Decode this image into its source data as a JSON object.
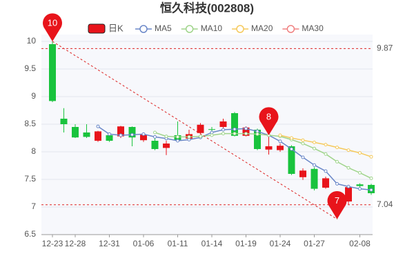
{
  "chart_data": {
    "type": "candlestick",
    "title": "恒久科技(002808)",
    "categories": [
      "12-23",
      null,
      "12-28",
      null,
      null,
      "12-31",
      null,
      null,
      "01-06",
      null,
      null,
      "01-11",
      null,
      null,
      "01-14",
      null,
      null,
      "01-19",
      null,
      null,
      "01-24",
      null,
      null,
      "01-27",
      null,
      null,
      null,
      "02-08",
      null
    ],
    "candles": {
      "name": "日K",
      "up_color": "#e8141b",
      "down_color": "#19c33d",
      "open": [
        9.95,
        8.6,
        8.45,
        8.35,
        8.2,
        8.3,
        8.28,
        8.45,
        8.21,
        8.2,
        8.07,
        8.3,
        8.24,
        8.34,
        8.41,
        8.45,
        8.7,
        8.29,
        8.4,
        8.04,
        8.03,
        8.1,
        7.54,
        7.69,
        7.35,
        7.2,
        7.1,
        7.41,
        7.4
      ],
      "high": [
        10,
        8.79,
        8.5,
        8.5,
        8.38,
        8.33,
        8.47,
        8.46,
        8.32,
        8.3,
        8.2,
        8.55,
        8.4,
        8.52,
        8.45,
        8.6,
        8.72,
        8.46,
        8.42,
        8.3,
        8.15,
        8.12,
        7.7,
        7.72,
        7.55,
        7.22,
        7.4,
        7.43,
        7.42
      ],
      "low": [
        8.9,
        8.35,
        8.25,
        8.25,
        8.18,
        8.18,
        8.25,
        8.1,
        8.18,
        8.03,
        7.94,
        8.2,
        8.22,
        8.32,
        8.38,
        8.43,
        8.28,
        8.28,
        8.03,
        7.95,
        8.0,
        7.58,
        7.49,
        7.3,
        7.33,
        6.78,
        7.05,
        7.36,
        7.22
      ],
      "close": [
        8.92,
        8.5,
        8.26,
        8.27,
        8.37,
        8.2,
        8.46,
        8.26,
        8.31,
        8.05,
        8.15,
        8.21,
        8.32,
        8.49,
        8.4,
        8.55,
        8.29,
        8.44,
        8.05,
        8.1,
        8.11,
        7.6,
        7.66,
        7.33,
        7.52,
        7.05,
        7.36,
        7.38,
        7.25
      ]
    },
    "series": [
      {
        "name": "MA5",
        "color": "#6a87c8",
        "values": [
          null,
          null,
          null,
          null,
          8.46,
          8.32,
          8.3,
          8.31,
          8.32,
          8.27,
          8.24,
          8.2,
          8.22,
          8.26,
          8.35,
          8.4,
          8.41,
          8.42,
          8.37,
          8.3,
          8.19,
          8.05,
          7.9,
          7.76,
          7.65,
          7.42,
          7.37,
          7.33,
          7.31
        ]
      },
      {
        "name": "MA10",
        "color": "#9fd48a",
        "values": [
          null,
          null,
          null,
          null,
          null,
          null,
          null,
          null,
          null,
          8.35,
          8.28,
          8.27,
          8.27,
          8.28,
          8.3,
          8.33,
          8.33,
          8.33,
          8.32,
          8.3,
          8.28,
          8.22,
          8.15,
          8.06,
          7.96,
          7.82,
          7.71,
          7.62,
          7.52
        ]
      },
      {
        "name": "MA20",
        "color": "#f5c95a",
        "values": [
          null,
          null,
          null,
          null,
          null,
          null,
          null,
          null,
          null,
          null,
          null,
          null,
          null,
          null,
          null,
          null,
          null,
          null,
          null,
          null,
          8.3,
          8.25,
          8.21,
          8.17,
          8.13,
          8.08,
          8.03,
          7.98,
          7.91
        ]
      },
      {
        "name": "MA30",
        "color": "#f08080",
        "values": [
          null,
          null,
          null,
          null,
          null,
          null,
          null,
          null,
          null,
          null,
          null,
          null,
          null,
          null,
          null,
          null,
          null,
          null,
          null,
          null,
          null,
          null,
          null,
          null,
          null,
          null,
          null,
          null,
          null
        ]
      }
    ],
    "markers": [
      {
        "label": "10"
      },
      {
        "label": "8"
      },
      {
        "label": "7"
      }
    ],
    "levels": [
      9.87,
      7.04
    ],
    "ylim": [
      6.5,
      10
    ],
    "yticks": [
      6.5,
      7,
      7.5,
      8,
      8.5,
      9,
      9.5,
      10
    ],
    "grid": true
  }
}
